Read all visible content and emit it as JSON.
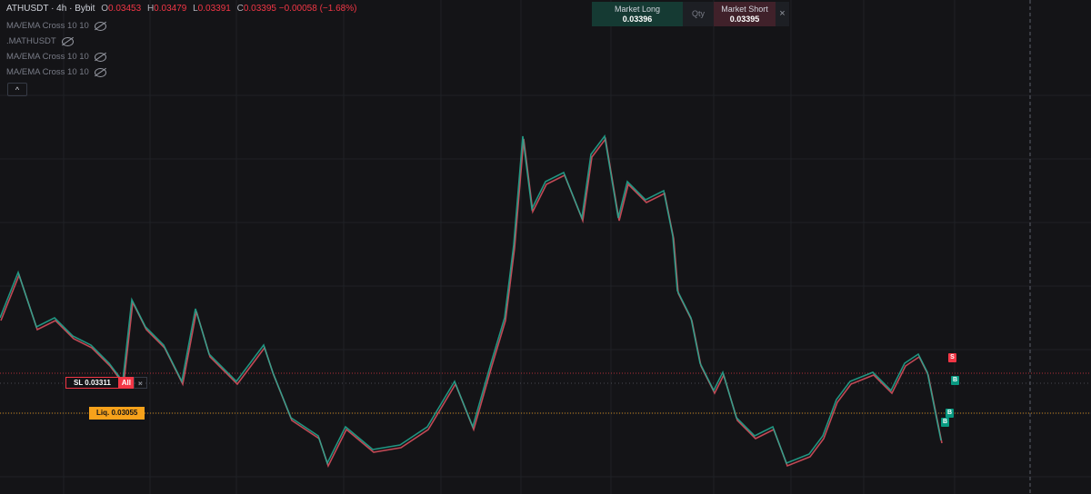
{
  "header": {
    "title": "ATHUSDT · 4h · Bybit",
    "ohlc": [
      {
        "key": "O",
        "value": "0.03453"
      },
      {
        "key": "H",
        "value": "0.03479"
      },
      {
        "key": "L",
        "value": "0.03391"
      },
      {
        "key": "C",
        "value": "0.03395"
      }
    ],
    "change": "−0.00058",
    "change_pct": "(−1.68%)"
  },
  "indicators": [
    "MA/EMA Cross 10 10",
    ".MATHUSDT",
    "MA/EMA Cross 10 10",
    "MA/EMA Cross 10 10"
  ],
  "trade_panel": {
    "long_label": "Market Long",
    "long_price": "0.03396",
    "qty_label": "Qty",
    "short_label": "Market Short",
    "short_price": "0.03395"
  },
  "orders": {
    "sl_label": "SL 0.03311",
    "sl_button": "All",
    "liq_label": "Liq. 0.03055"
  },
  "markers": [
    "S",
    "B",
    "B",
    "B"
  ]
}
